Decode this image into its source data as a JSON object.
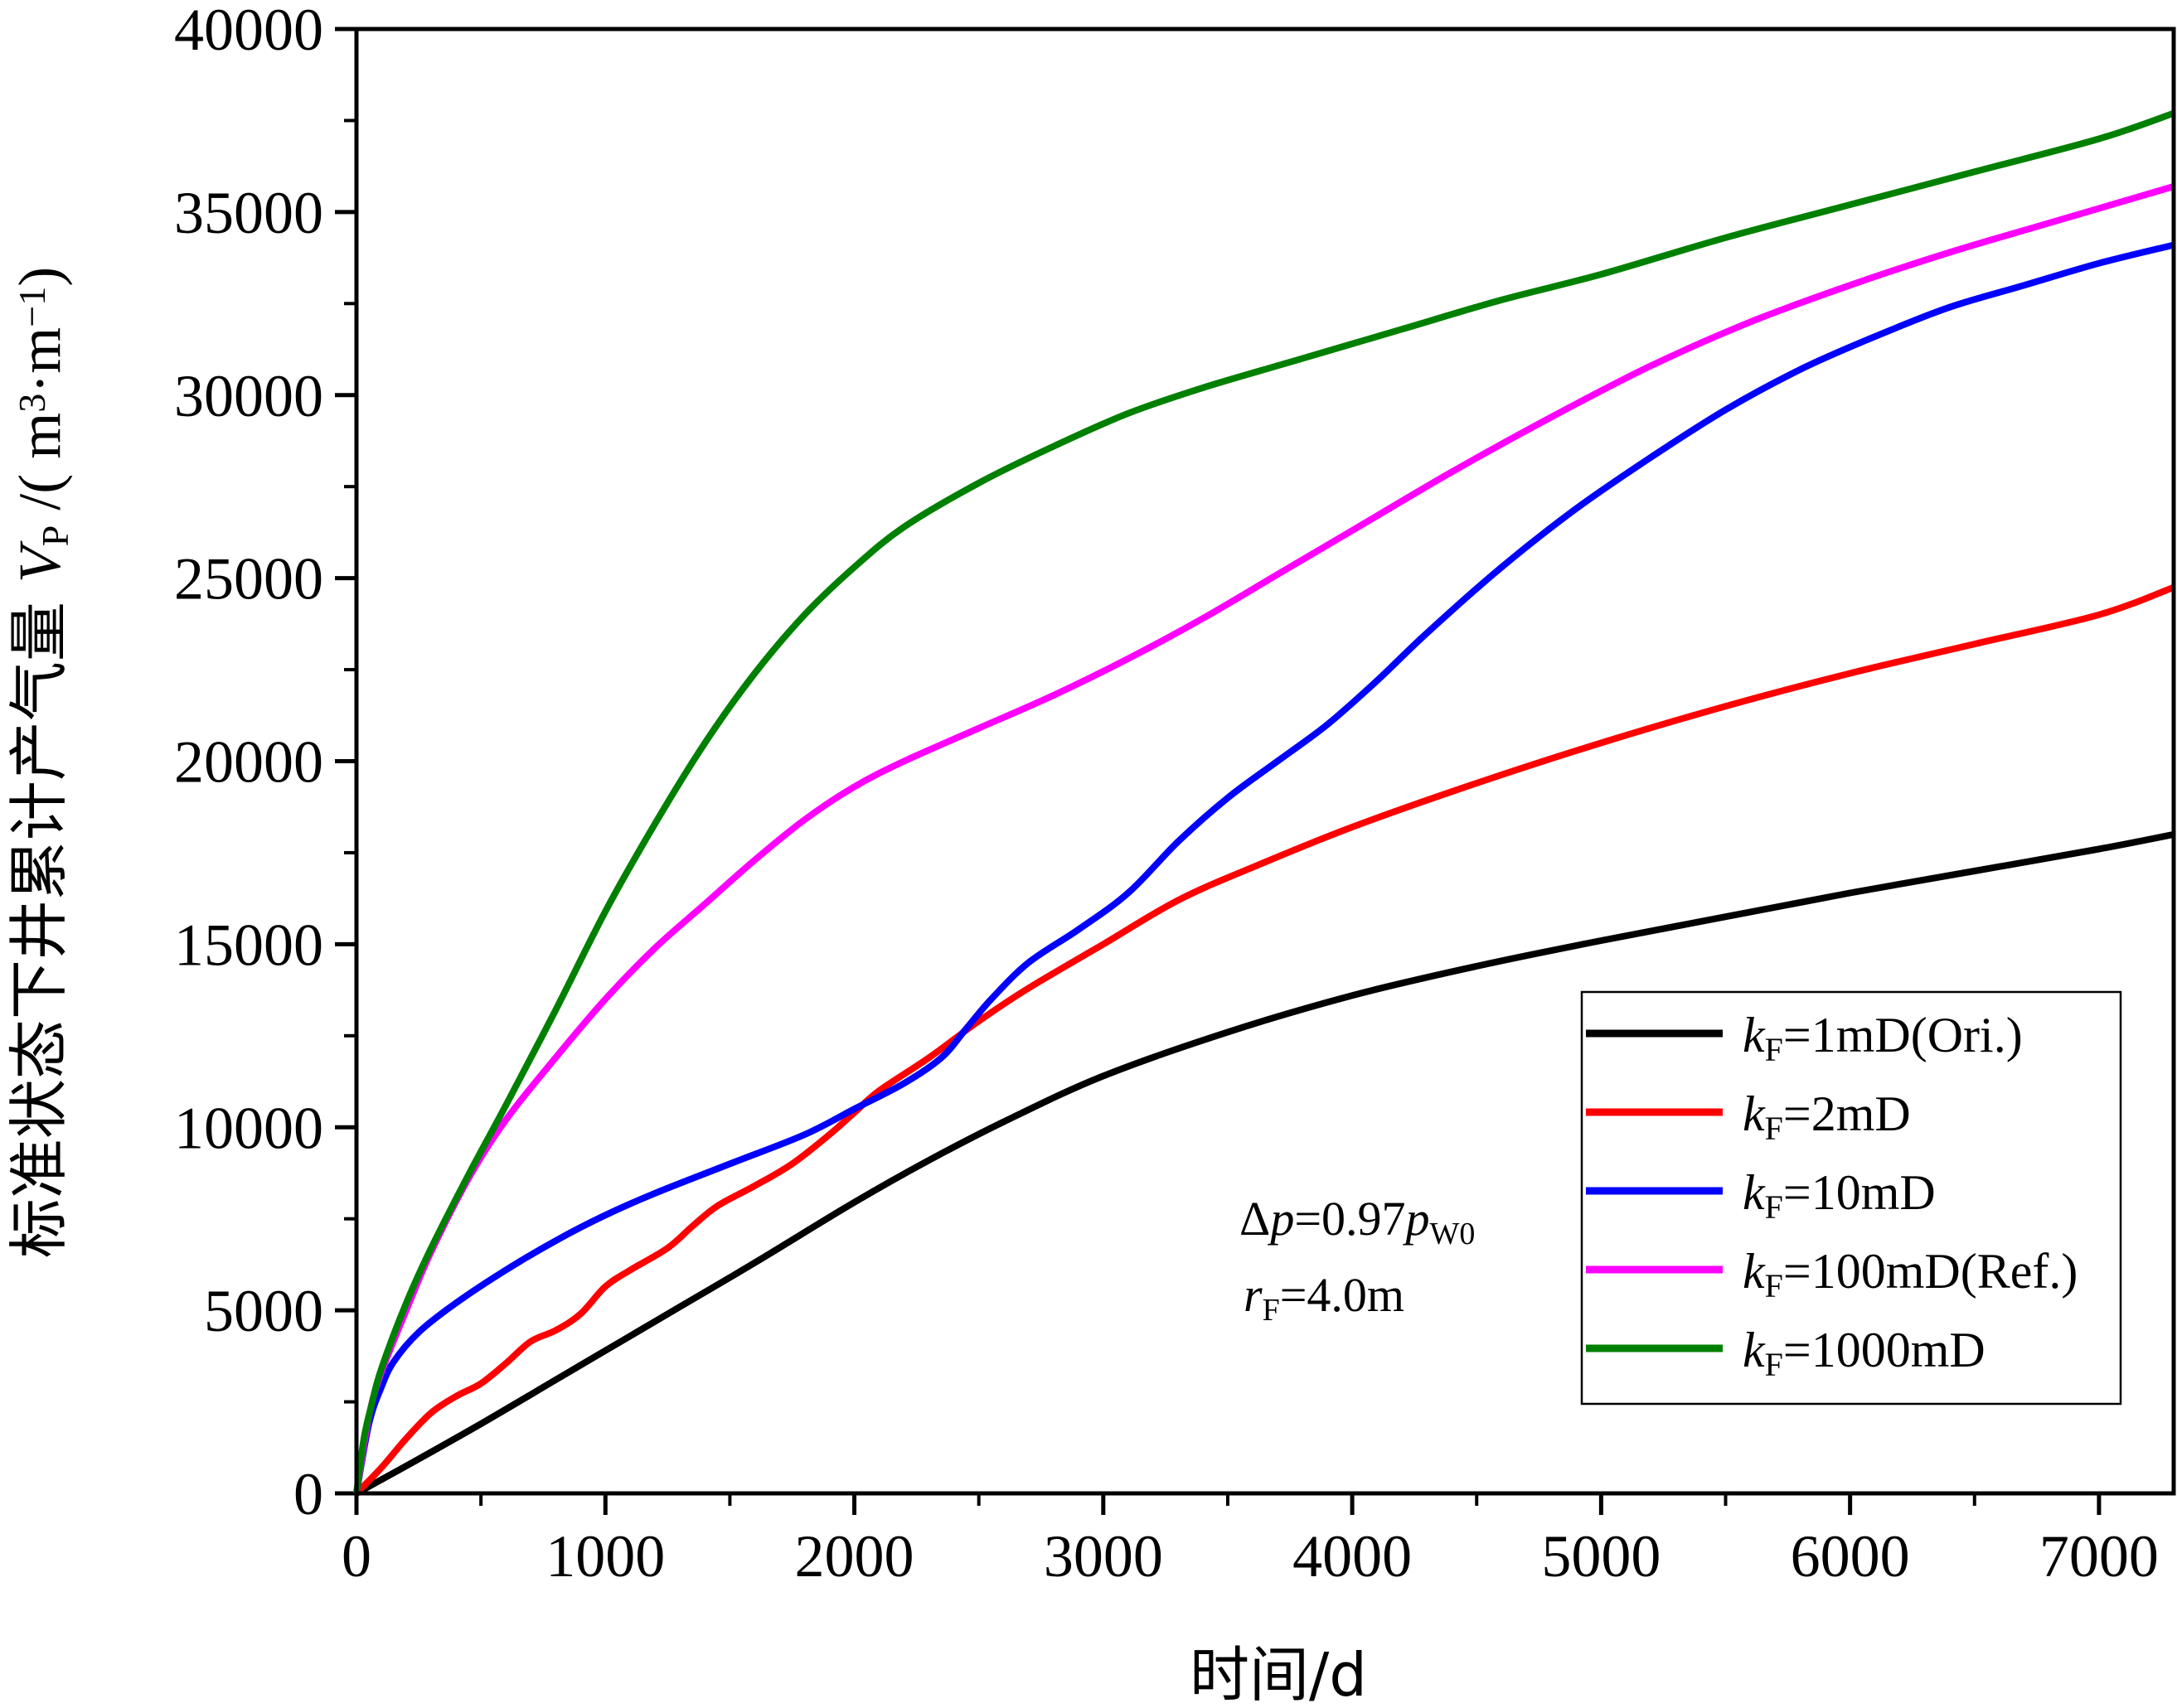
{
  "chart_data": {
    "type": "line",
    "title": "",
    "xlabel": "时间/d",
    "ylabel": {
      "prefix": "标准状态下井累计产气量 ",
      "var": "V",
      "var_sub": "P",
      "unit_open": " /( m",
      "unit_sup1": "3",
      "unit_mid": "·m",
      "unit_sup2": "−1",
      "unit_close": ")"
    },
    "xlim": [
      0,
      7300
    ],
    "ylim": [
      0,
      40000
    ],
    "xticks": [
      0,
      1000,
      2000,
      3000,
      4000,
      5000,
      6000,
      7000
    ],
    "yticks": [
      0,
      5000,
      10000,
      15000,
      20000,
      25000,
      30000,
      35000,
      40000
    ],
    "grid": false,
    "legend_position": "bottom-right",
    "series": [
      {
        "name": "kF=1mD(Ori.)",
        "label": {
          "var": "k",
          "sub": "F",
          "text": "=1mD(Ori.)"
        },
        "color": "#000000",
        "points": [
          [
            0,
            0
          ],
          [
            200,
            750
          ],
          [
            500,
            1900
          ],
          [
            800,
            3100
          ],
          [
            1000,
            3900
          ],
          [
            1300,
            5100
          ],
          [
            1600,
            6300
          ],
          [
            2000,
            7950
          ],
          [
            2300,
            9100
          ],
          [
            2600,
            10150
          ],
          [
            3000,
            11400
          ],
          [
            3500,
            12600
          ],
          [
            4000,
            13600
          ],
          [
            4500,
            14400
          ],
          [
            5000,
            15100
          ],
          [
            5500,
            15750
          ],
          [
            6000,
            16400
          ],
          [
            6500,
            17000
          ],
          [
            7000,
            17600
          ],
          [
            7300,
            18000
          ]
        ]
      },
      {
        "name": "kF=2mD",
        "label": {
          "var": "k",
          "sub": "F",
          "text": "=2mD"
        },
        "color": "#ff0000",
        "points": [
          [
            0,
            0
          ],
          [
            100,
            700
          ],
          [
            200,
            1500
          ],
          [
            300,
            2200
          ],
          [
            400,
            2650
          ],
          [
            500,
            3000
          ],
          [
            600,
            3550
          ],
          [
            700,
            4150
          ],
          [
            800,
            4450
          ],
          [
            900,
            4900
          ],
          [
            1000,
            5650
          ],
          [
            1100,
            6100
          ],
          [
            1250,
            6700
          ],
          [
            1350,
            7300
          ],
          [
            1450,
            7850
          ],
          [
            1600,
            8400
          ],
          [
            1750,
            9000
          ],
          [
            1900,
            9800
          ],
          [
            2000,
            10400
          ],
          [
            2100,
            11000
          ],
          [
            2300,
            11900
          ],
          [
            2500,
            12900
          ],
          [
            2700,
            13800
          ],
          [
            3000,
            15000
          ],
          [
            3300,
            16200
          ],
          [
            3600,
            17100
          ],
          [
            4000,
            18200
          ],
          [
            4500,
            19400
          ],
          [
            5000,
            20500
          ],
          [
            5500,
            21500
          ],
          [
            6000,
            22400
          ],
          [
            6500,
            23200
          ],
          [
            7000,
            24000
          ],
          [
            7300,
            24750
          ]
        ]
      },
      {
        "name": "kF=10mD",
        "label": {
          "var": "k",
          "sub": "F",
          "text": "=10mD"
        },
        "color": "#0000ff",
        "points": [
          [
            0,
            0
          ],
          [
            50,
            1900
          ],
          [
            100,
            2900
          ],
          [
            150,
            3600
          ],
          [
            250,
            4400
          ],
          [
            400,
            5200
          ],
          [
            600,
            6100
          ],
          [
            800,
            6900
          ],
          [
            1000,
            7600
          ],
          [
            1200,
            8200
          ],
          [
            1500,
            9000
          ],
          [
            1800,
            9800
          ],
          [
            2000,
            10500
          ],
          [
            2200,
            11200
          ],
          [
            2350,
            11900
          ],
          [
            2450,
            12700
          ],
          [
            2550,
            13500
          ],
          [
            2700,
            14500
          ],
          [
            2900,
            15400
          ],
          [
            3100,
            16400
          ],
          [
            3300,
            17800
          ],
          [
            3500,
            19000
          ],
          [
            3700,
            20000
          ],
          [
            3900,
            21000
          ],
          [
            4100,
            22200
          ],
          [
            4300,
            23500
          ],
          [
            4600,
            25300
          ],
          [
            4900,
            26900
          ],
          [
            5200,
            28300
          ],
          [
            5500,
            29600
          ],
          [
            5800,
            30700
          ],
          [
            6100,
            31600
          ],
          [
            6400,
            32400
          ],
          [
            6700,
            33000
          ],
          [
            7000,
            33600
          ],
          [
            7300,
            34100
          ]
        ]
      },
      {
        "name": "kF=100mD(Ref.)",
        "label": {
          "var": "k",
          "sub": "F",
          "text": "=100mD(Ref.)"
        },
        "color": "#ff00ff",
        "points": [
          [
            0,
            0
          ],
          [
            50,
            2100
          ],
          [
            100,
            3300
          ],
          [
            200,
            5000
          ],
          [
            300,
            6600
          ],
          [
            450,
            8600
          ],
          [
            600,
            10200
          ],
          [
            800,
            11900
          ],
          [
            1000,
            13500
          ],
          [
            1200,
            14900
          ],
          [
            1400,
            16100
          ],
          [
            1600,
            17300
          ],
          [
            1800,
            18400
          ],
          [
            2000,
            19300
          ],
          [
            2200,
            20000
          ],
          [
            2500,
            20900
          ],
          [
            2800,
            21800
          ],
          [
            3100,
            22800
          ],
          [
            3400,
            23900
          ],
          [
            3700,
            25100
          ],
          [
            4000,
            26300
          ],
          [
            4400,
            27900
          ],
          [
            4800,
            29400
          ],
          [
            5200,
            30800
          ],
          [
            5600,
            32000
          ],
          [
            6000,
            33000
          ],
          [
            6400,
            33900
          ],
          [
            6800,
            34700
          ],
          [
            7300,
            35700
          ]
        ]
      },
      {
        "name": "kF=1000mD",
        "label": {
          "var": "k",
          "sub": "F",
          "text": "=1000mD"
        },
        "color": "#008000",
        "points": [
          [
            0,
            0
          ],
          [
            30,
            1500
          ],
          [
            60,
            2400
          ],
          [
            100,
            3400
          ],
          [
            200,
            5200
          ],
          [
            300,
            6700
          ],
          [
            450,
            8700
          ],
          [
            600,
            10600
          ],
          [
            800,
            13200
          ],
          [
            1000,
            15900
          ],
          [
            1200,
            18300
          ],
          [
            1400,
            20500
          ],
          [
            1600,
            22400
          ],
          [
            1800,
            24000
          ],
          [
            2000,
            25300
          ],
          [
            2200,
            26400
          ],
          [
            2500,
            27600
          ],
          [
            2800,
            28600
          ],
          [
            3100,
            29500
          ],
          [
            3400,
            30200
          ],
          [
            3800,
            31000
          ],
          [
            4200,
            31800
          ],
          [
            4600,
            32600
          ],
          [
            5000,
            33300
          ],
          [
            5500,
            34300
          ],
          [
            6000,
            35200
          ],
          [
            6500,
            36100
          ],
          [
            7000,
            37000
          ],
          [
            7300,
            37700
          ]
        ]
      }
    ],
    "annotation": {
      "line1": {
        "delta": "Δ",
        "var": "p",
        "text": "=0.97",
        "var2": "p",
        "sub": "W0"
      },
      "line2": {
        "var": "r",
        "sub": "F",
        "text": "=4.0m"
      }
    }
  }
}
